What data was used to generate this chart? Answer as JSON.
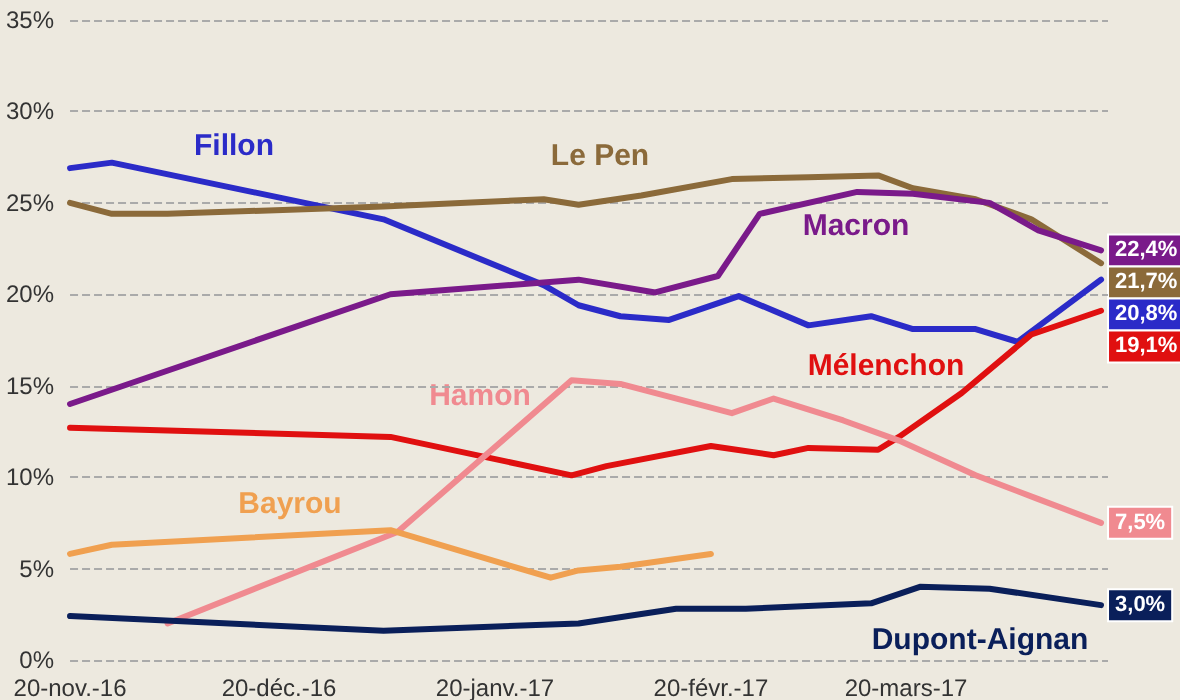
{
  "chart_data": {
    "type": "line",
    "xlim": [
      "2016-11-20",
      "2017-04-18"
    ],
    "ylim": [
      0,
      35
    ],
    "xticks": [
      {
        "value": "2016-11-20",
        "label": "20-nov.-16"
      },
      {
        "value": "2016-12-20",
        "label": "20-déc.-16"
      },
      {
        "value": "2017-01-20",
        "label": "20-janv.-17"
      },
      {
        "value": "2017-02-20",
        "label": "20-févr.-17"
      },
      {
        "value": "2017-03-20",
        "label": "20-mars-17"
      }
    ],
    "yticks": [
      {
        "value": 0,
        "label": "0%"
      },
      {
        "value": 5,
        "label": "5%"
      },
      {
        "value": 10,
        "label": "10%"
      },
      {
        "value": 15,
        "label": "15%"
      },
      {
        "value": 20,
        "label": "20%"
      },
      {
        "value": 25,
        "label": "25%"
      },
      {
        "value": 30,
        "label": "30%"
      },
      {
        "value": 35,
        "label": "35%"
      }
    ],
    "grid": "y",
    "legend": false,
    "marker": "none",
    "line_style": "solid",
    "series": [
      {
        "name": "Fillon",
        "color": "#2b2bc8",
        "x": [
          "2016-11-20",
          "2016-11-26",
          "2017-01-04",
          "2017-01-27",
          "2017-02-01",
          "2017-02-07",
          "2017-02-14",
          "2017-02-24",
          "2017-03-06",
          "2017-03-15",
          "2017-03-21",
          "2017-03-30",
          "2017-04-05",
          "2017-04-17"
        ],
        "values": [
          26.9,
          27.2,
          24.1,
          20.5,
          19.4,
          18.8,
          18.6,
          19.9,
          18.3,
          18.8,
          18.1,
          18.1,
          17.4,
          20.8
        ],
        "value_labels": [
          null,
          null,
          null,
          null,
          null,
          null,
          null,
          null,
          null,
          null,
          null,
          null,
          null,
          "20,8%"
        ]
      },
      {
        "name": "Le Pen",
        "color": "#8b6a3a",
        "x": [
          "2016-11-20",
          "2016-11-26",
          "2016-12-04",
          "2017-01-04",
          "2017-01-27",
          "2017-02-01",
          "2017-02-10",
          "2017-02-23",
          "2017-03-06",
          "2017-03-16",
          "2017-03-21",
          "2017-03-30",
          "2017-04-07",
          "2017-04-17"
        ],
        "values": [
          25.0,
          24.4,
          24.4,
          24.8,
          25.2,
          24.9,
          25.4,
          26.3,
          26.4,
          26.5,
          25.8,
          25.2,
          24.1,
          21.7
        ],
        "value_labels": [
          null,
          null,
          null,
          null,
          null,
          null,
          null,
          null,
          null,
          null,
          null,
          null,
          null,
          "21,7%"
        ]
      },
      {
        "name": "Macron",
        "color": "#7a1a8a",
        "x": [
          "2016-11-20",
          "2017-01-05",
          "2017-02-01",
          "2017-02-12",
          "2017-02-21",
          "2017-02-27",
          "2017-03-13",
          "2017-03-21",
          "2017-04-01",
          "2017-04-08",
          "2017-04-17"
        ],
        "values": [
          14.0,
          20.0,
          20.8,
          20.1,
          21.0,
          24.4,
          25.6,
          25.5,
          25.0,
          23.5,
          22.4
        ],
        "value_labels": [
          null,
          null,
          null,
          null,
          null,
          null,
          null,
          null,
          null,
          null,
          "22,4%"
        ]
      },
      {
        "name": "Mélenchon",
        "color": "#e01010",
        "x": [
          "2016-11-20",
          "2017-01-05",
          "2017-01-31",
          "2017-02-05",
          "2017-02-20",
          "2017-03-01",
          "2017-03-06",
          "2017-03-16",
          "2017-03-19",
          "2017-03-28",
          "2017-04-07",
          "2017-04-17"
        ],
        "values": [
          12.7,
          12.2,
          10.1,
          10.6,
          11.7,
          11.2,
          11.6,
          11.5,
          12.2,
          14.6,
          17.8,
          19.1
        ],
        "value_labels": [
          null,
          null,
          null,
          null,
          null,
          null,
          null,
          null,
          null,
          null,
          null,
          "19,1%"
        ]
      },
      {
        "name": "Hamon",
        "color": "#f08a90",
        "x": [
          "2016-12-04",
          "2017-01-06",
          "2017-01-31",
          "2017-02-07",
          "2017-02-23",
          "2017-03-01",
          "2017-03-11",
          "2017-03-19",
          "2017-03-30",
          "2017-04-08",
          "2017-04-17"
        ],
        "values": [
          2.0,
          7.0,
          15.3,
          15.1,
          13.5,
          14.3,
          13.1,
          12.0,
          10.1,
          8.8,
          7.5
        ],
        "value_labels": [
          null,
          null,
          null,
          null,
          null,
          null,
          null,
          null,
          null,
          null,
          "7,5%"
        ]
      },
      {
        "name": "Bayrou",
        "color": "#f0a050",
        "x": [
          "2016-11-20",
          "2016-11-26",
          "2017-01-05",
          "2017-01-28",
          "2017-02-01",
          "2017-02-07",
          "2017-02-20"
        ],
        "values": [
          5.8,
          6.3,
          7.1,
          4.5,
          4.9,
          5.1,
          5.8
        ]
      },
      {
        "name": "Dupont-Aignan",
        "color": "#0a1f5a",
        "x": [
          "2016-11-20",
          "2017-01-04",
          "2017-02-01",
          "2017-02-15",
          "2017-02-25",
          "2017-03-15",
          "2017-03-22",
          "2017-04-01",
          "2017-04-17"
        ],
        "values": [
          2.4,
          1.6,
          2.0,
          2.8,
          2.8,
          3.1,
          4.0,
          3.9,
          3.0
        ],
        "value_labels": [
          null,
          null,
          null,
          null,
          null,
          null,
          null,
          null,
          "3,0%"
        ]
      }
    ]
  }
}
